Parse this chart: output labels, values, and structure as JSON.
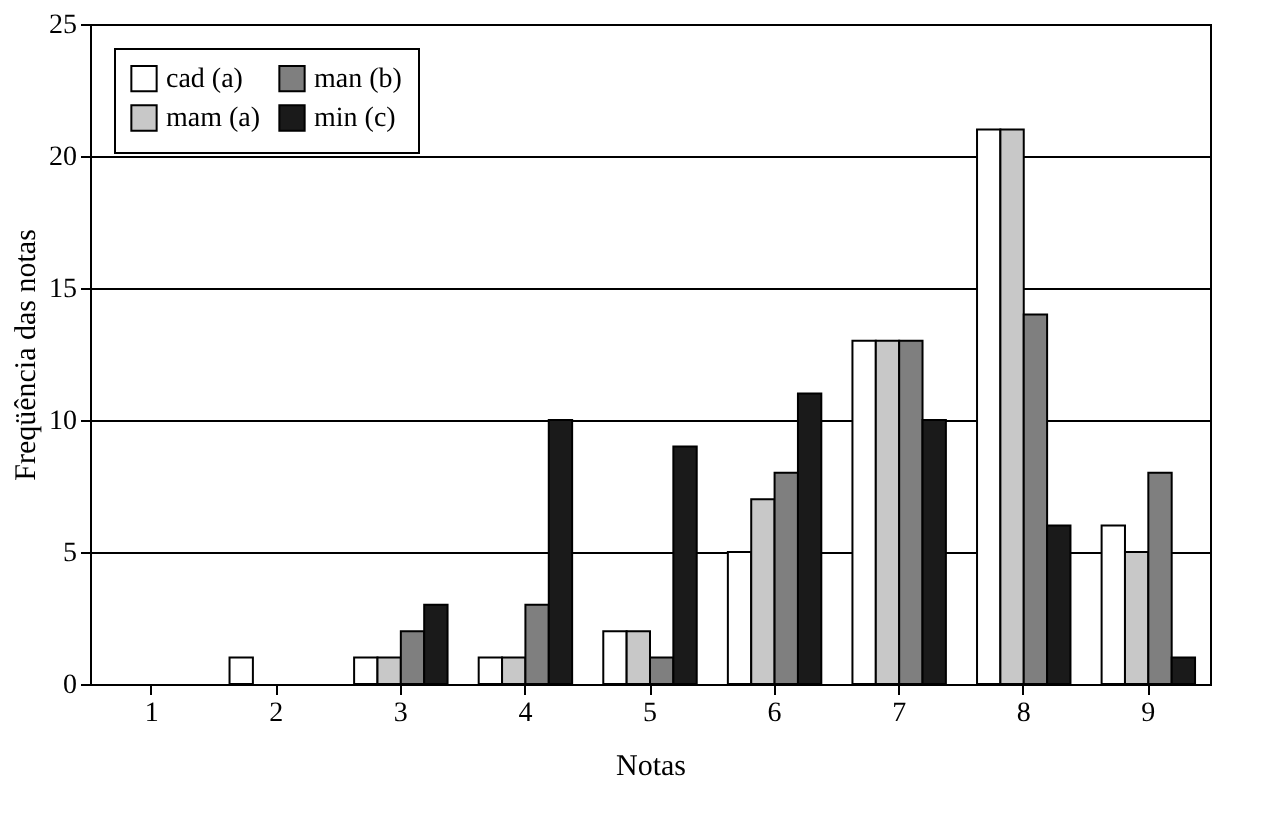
{
  "chart_data": {
    "type": "bar",
    "xlabel": "Notas",
    "ylabel": "Freqüência das notas",
    "categories": [
      "1",
      "2",
      "3",
      "4",
      "5",
      "6",
      "7",
      "8",
      "9"
    ],
    "series": [
      {
        "name": "cad (a)",
        "color": "#ffffff",
        "values": [
          0,
          1,
          1,
          1,
          2,
          5,
          13,
          21,
          6
        ]
      },
      {
        "name": "mam (a)",
        "color": "#c8c8c8",
        "values": [
          0,
          0,
          1,
          1,
          2,
          7,
          13,
          21,
          5
        ]
      },
      {
        "name": "man (b)",
        "color": "#7f7f7f",
        "values": [
          0,
          0,
          2,
          3,
          1,
          8,
          13,
          14,
          8
        ]
      },
      {
        "name": "min (c)",
        "color": "#1a1a1a",
        "values": [
          0,
          0,
          3,
          10,
          9,
          11,
          10,
          6,
          1
        ]
      }
    ],
    "ylim": [
      0,
      25
    ],
    "yticks": [
      0,
      5,
      10,
      15,
      20,
      25
    ],
    "grid": "y",
    "legend": "top left"
  }
}
